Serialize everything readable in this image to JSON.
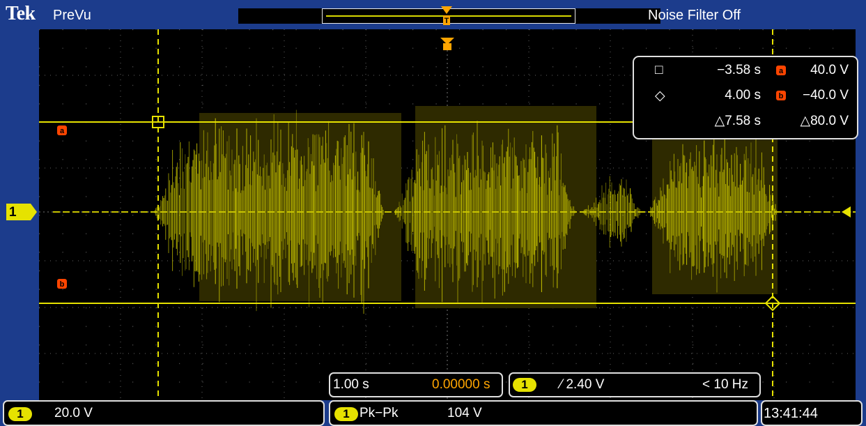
{
  "header": {
    "brand": "Tek",
    "mode": "PreVu",
    "noise_filter": "Noise Filter Off"
  },
  "channel": {
    "marker": "1",
    "color": "#e6e200"
  },
  "cursors": {
    "labels": {
      "a": "a",
      "b": "b"
    },
    "readout": {
      "t1": "−3.58 s",
      "v1": "40.0 V",
      "t2": "4.00 s",
      "v2": "−40.0 V",
      "dt": "△7.58 s",
      "dv": "△80.0 V"
    }
  },
  "horizontal": {
    "scale": "1.00 s",
    "position": "0.00000 s"
  },
  "trigger": {
    "channel": "1",
    "level": "⁄ 2.40 V",
    "freq": "< 10 Hz"
  },
  "status": {
    "ch1_label": "1",
    "ch1_scale": "20.0 V",
    "meas_label": "1",
    "meas_type": "Pk−Pk",
    "meas_value": "104 V",
    "clock": "13:41:44"
  },
  "colors": {
    "trace": "#e6e200",
    "cursor_label": "#ff4500",
    "frame": "#1c3c8c",
    "trigger_marker": "#ffa500"
  }
}
